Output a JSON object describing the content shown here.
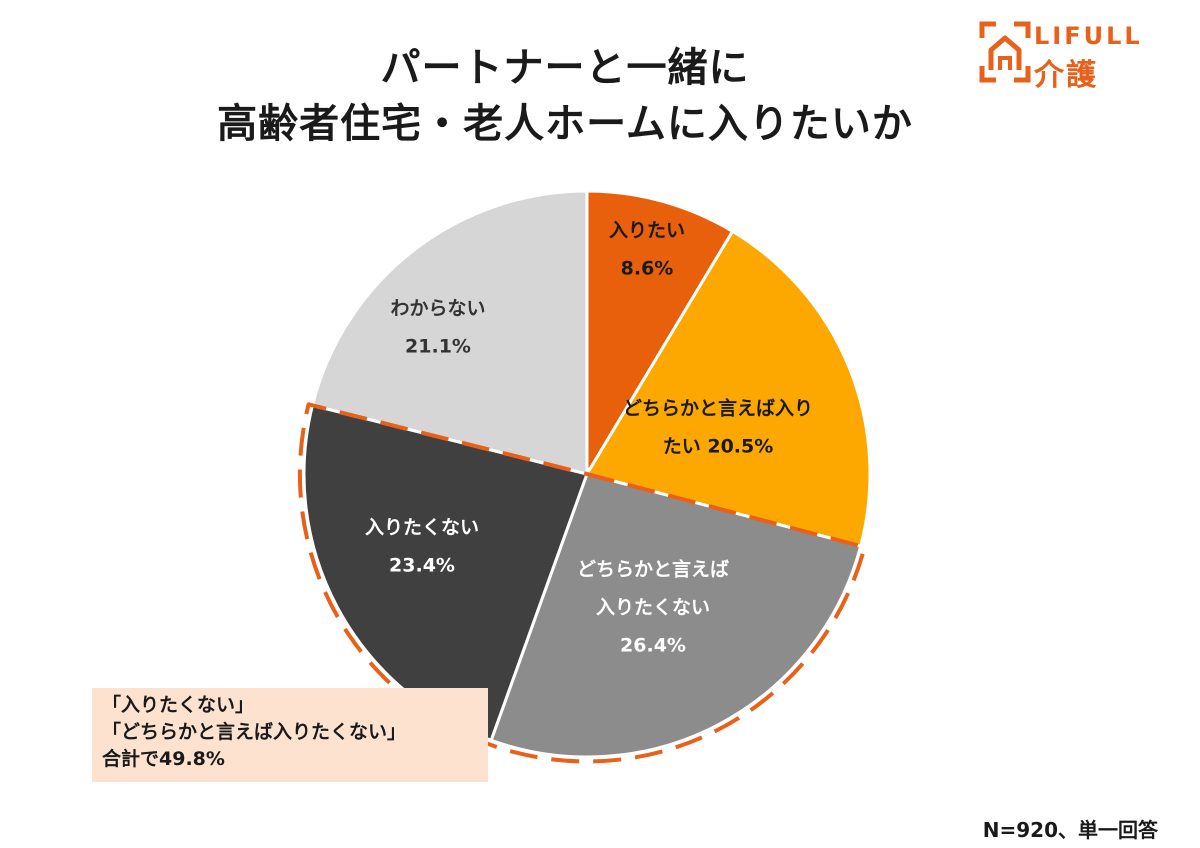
{
  "title_line1": "パートナーと一緒に",
  "title_line2": "高齢者住宅・老人ホームに入りたいか",
  "logo": {
    "en": "LIFULL",
    "jp": "介護"
  },
  "chart_data": {
    "type": "pie",
    "start_angle_deg": 0,
    "direction": "clockwise",
    "slices": [
      {
        "name": "入りたい",
        "value": 8.6,
        "label_lines": [
          "入りたい",
          "8.6%"
        ],
        "color": "#e8600c",
        "text_color": "#1a1a1a"
      },
      {
        "name": "どちらかと言えば入りたい",
        "value": 20.5,
        "label_lines": [
          "どちらかと言えば入り",
          "たい 20.5%"
        ],
        "color": "#fca800",
        "text_color": "#1a1a1a"
      },
      {
        "name": "どちらかと言えば入りたくない",
        "value": 26.4,
        "label_lines": [
          "どちらかと言えば",
          "入りたくない",
          "26.4%"
        ],
        "color": "#8c8c8c",
        "text_color": "#ffffff"
      },
      {
        "name": "入りたくない",
        "value": 23.4,
        "label_lines": [
          "入りたくない",
          "23.4%"
        ],
        "color": "#404040",
        "text_color": "#ffffff"
      },
      {
        "name": "わからない",
        "value": 21.1,
        "label_lines": [
          "わからない",
          "21.1%"
        ],
        "color": "#d6d6d6",
        "text_color": "#333333"
      }
    ],
    "highlight": {
      "slices": [
        "どちらかと言えば入りたくない",
        "入りたくない"
      ],
      "style": "dashed-outline",
      "color": "#e8611a"
    }
  },
  "note": {
    "line1": "「入りたくない」",
    "line2": "「どちらかと言えば入りたくない」",
    "line3": "合計で49.8%"
  },
  "footnote": "N=920、単一回答"
}
